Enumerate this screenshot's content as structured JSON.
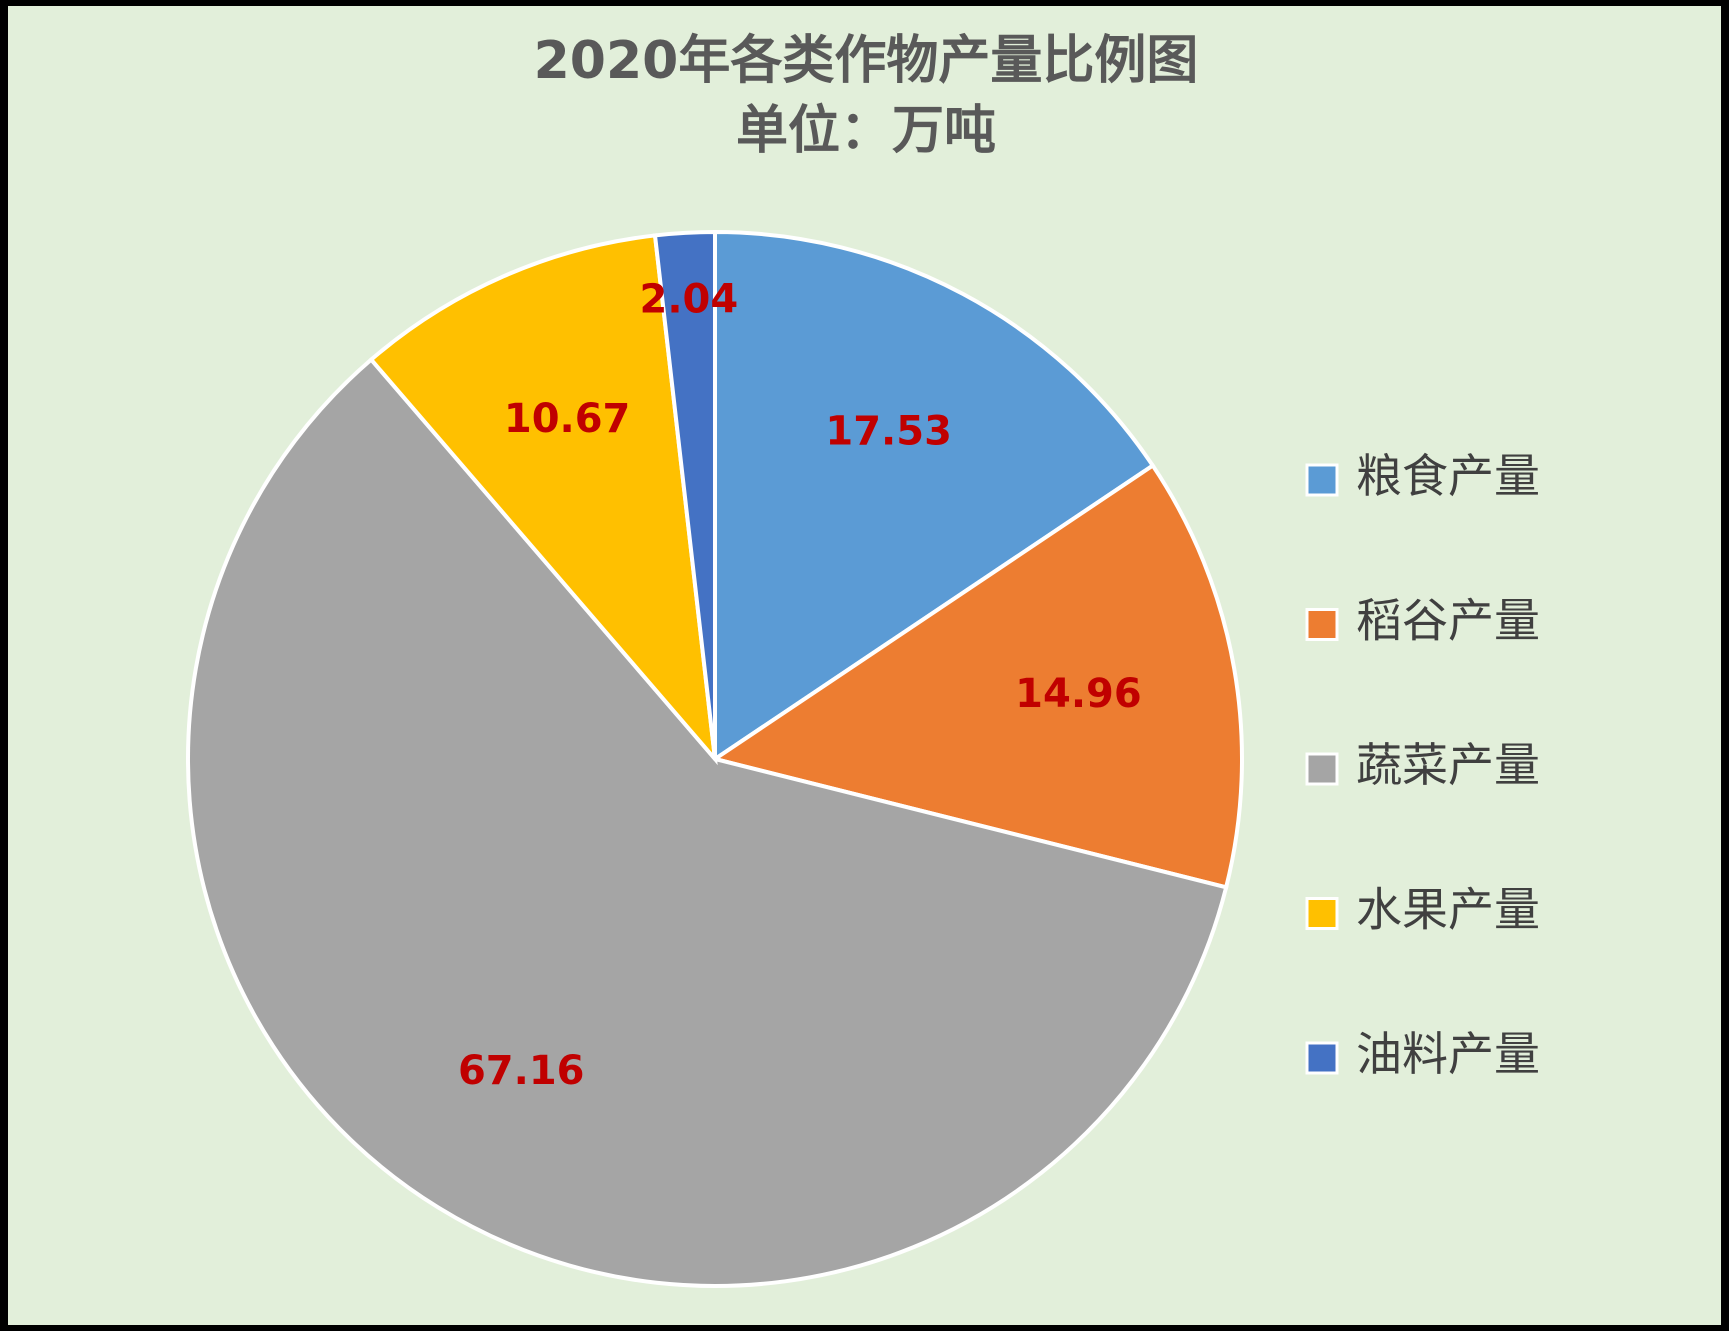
{
  "chart_data": {
    "type": "pie",
    "title": "2020年各类作物产量比例图",
    "subtitle": "单位：万吨",
    "categories": [
      "粮食产量",
      "稻谷产量",
      "蔬菜产量",
      "水果产量",
      "油料产量"
    ],
    "values": [
      17.53,
      14.96,
      67.16,
      10.67,
      2.04
    ],
    "colors": [
      "#5b9bd5",
      "#ed7d31",
      "#a5a5a5",
      "#ffc000",
      "#4472c4"
    ],
    "label_color": "#c00000",
    "legend": "right"
  }
}
